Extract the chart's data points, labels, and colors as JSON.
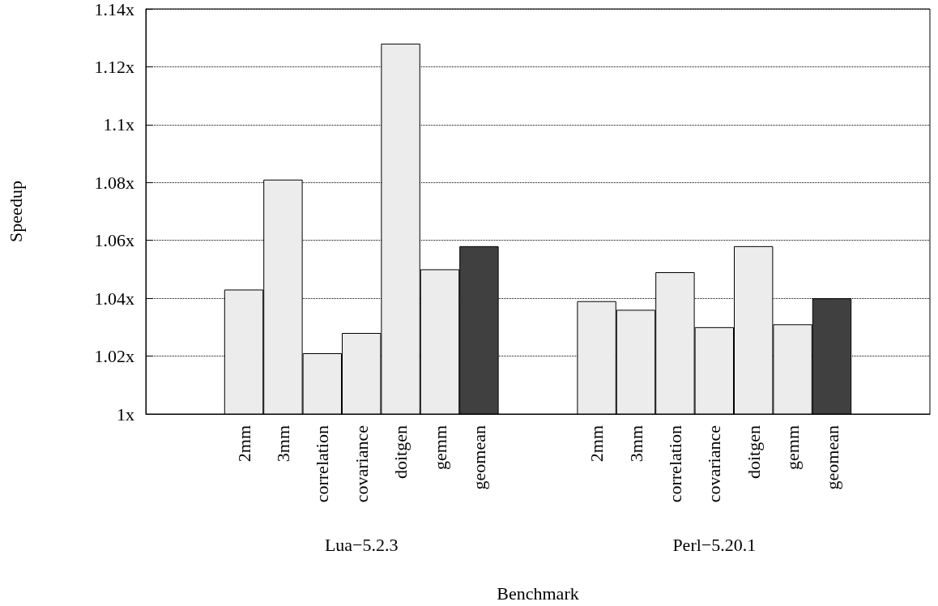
{
  "chart_data": {
    "type": "bar",
    "categories": [
      null,
      null,
      "2mm",
      "3mm",
      "correlation",
      "covariance",
      "doitgen",
      "gemm",
      "geomean",
      null,
      null,
      "2mm",
      "3mm",
      "correlation",
      "covariance",
      "doitgen",
      "gemm",
      "geomean",
      null,
      null
    ],
    "values": [
      null,
      null,
      1.043,
      1.081,
      1.021,
      1.028,
      1.128,
      1.05,
      1.058,
      null,
      null,
      1.039,
      1.036,
      1.049,
      1.03,
      1.058,
      1.031,
      1.04,
      null,
      null
    ],
    "colors": [
      null,
      null,
      "#ececec",
      "#ececec",
      "#ececec",
      "#ececec",
      "#ececec",
      "#ececec",
      "#404040",
      null,
      null,
      "#ececec",
      "#ececec",
      "#ececec",
      "#ececec",
      "#ececec",
      "#ececec",
      "#404040",
      null,
      null
    ],
    "xlabel": "Benchmark",
    "ylabel": "Speedup",
    "annotations": [
      "Lua−5.2.3",
      "Perl−5.20.1"
    ],
    "ylim": [
      1,
      1.14
    ],
    "yticks": [
      {
        "value": 1,
        "label": "1x"
      },
      {
        "value": 1.02,
        "label": "1.02x"
      },
      {
        "value": 1.04,
        "label": "1.04x"
      },
      {
        "value": 1.06,
        "label": "1.06x"
      },
      {
        "value": 1.08,
        "label": "1.08x"
      },
      {
        "value": 1.1,
        "label": "1.1x"
      },
      {
        "value": 1.12,
        "label": "1.12x"
      },
      {
        "value": 1.14,
        "label": "1.14x"
      }
    ],
    "grid": "y",
    "line_style": "dotted"
  }
}
